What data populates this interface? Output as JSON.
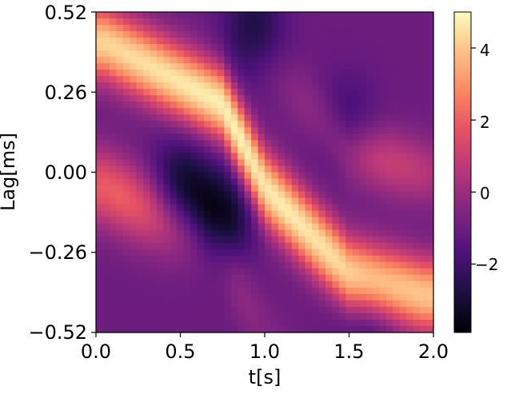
{
  "chart_data": {
    "type": "heatmap",
    "xlabel": "t[s]",
    "ylabel": "Lag[ms]",
    "xlim": [
      0.0,
      2.0
    ],
    "ylim": [
      -0.52,
      0.52
    ],
    "x_ticks": [
      "0.0",
      "0.5",
      "1.0",
      "1.5",
      "2.0"
    ],
    "y_ticks": [
      "0.52",
      "0.26",
      "0.00",
      "−0.26",
      "−0.52"
    ],
    "colorbar": {
      "colormap": "magma",
      "range": [
        -3.9,
        5.0
      ],
      "ticks": [
        "4",
        "2",
        "0",
        "−2"
      ]
    },
    "grid_size": [
      50,
      50
    ],
    "features": {
      "ridge": {
        "description_values": [
          [
            0.05,
            0.42
          ],
          [
            0.75,
            0.22
          ],
          [
            1.0,
            -0.05
          ],
          [
            1.5,
            -0.33
          ],
          [
            1.95,
            -0.4
          ]
        ],
        "peak": 5.0
      },
      "troughs": [
        {
          "t": 0.72,
          "lag": -0.16,
          "value": -3.9
        },
        {
          "t": 0.5,
          "lag": -0.05,
          "value": -3.2
        },
        {
          "t": 0.93,
          "lag": 0.47,
          "value": -2.8
        },
        {
          "t": 1.48,
          "lag": 0.15,
          "value": -2.3
        },
        {
          "t": 1.62,
          "lag": -0.49,
          "value": -2.0
        }
      ],
      "side_bands": [
        {
          "region": "bottom-left",
          "value": 2.2
        },
        {
          "region": "top-right",
          "value": 1.2
        }
      ]
    }
  }
}
